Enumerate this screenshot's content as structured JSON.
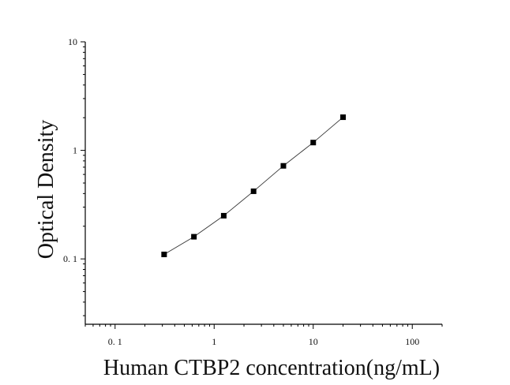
{
  "chart_data": {
    "type": "scatter",
    "title": "",
    "xlabel": "Human CTBP2 concentration(ng/mL)",
    "ylabel": "Optical Density",
    "x_scale": "log",
    "y_scale": "log",
    "xlim": [
      0.05,
      200
    ],
    "ylim": [
      0.025,
      10
    ],
    "x_ticks": [
      {
        "value": 0.1,
        "label": "0. 1"
      },
      {
        "value": 1,
        "label": "1"
      },
      {
        "value": 10,
        "label": "10"
      },
      {
        "value": 100,
        "label": "100"
      }
    ],
    "y_ticks": [
      {
        "value": 0.1,
        "label": "0. 1"
      },
      {
        "value": 1,
        "label": "1"
      },
      {
        "value": 10,
        "label": "10"
      }
    ],
    "grid": false,
    "legend": "none",
    "series": [
      {
        "marker": "square",
        "color": "#000000",
        "fit_line": true,
        "x": [
          0.3125,
          0.625,
          1.25,
          2.5,
          5,
          10,
          20
        ],
        "y": [
          0.11,
          0.16,
          0.25,
          0.42,
          0.72,
          1.18,
          2.02
        ]
      }
    ]
  }
}
